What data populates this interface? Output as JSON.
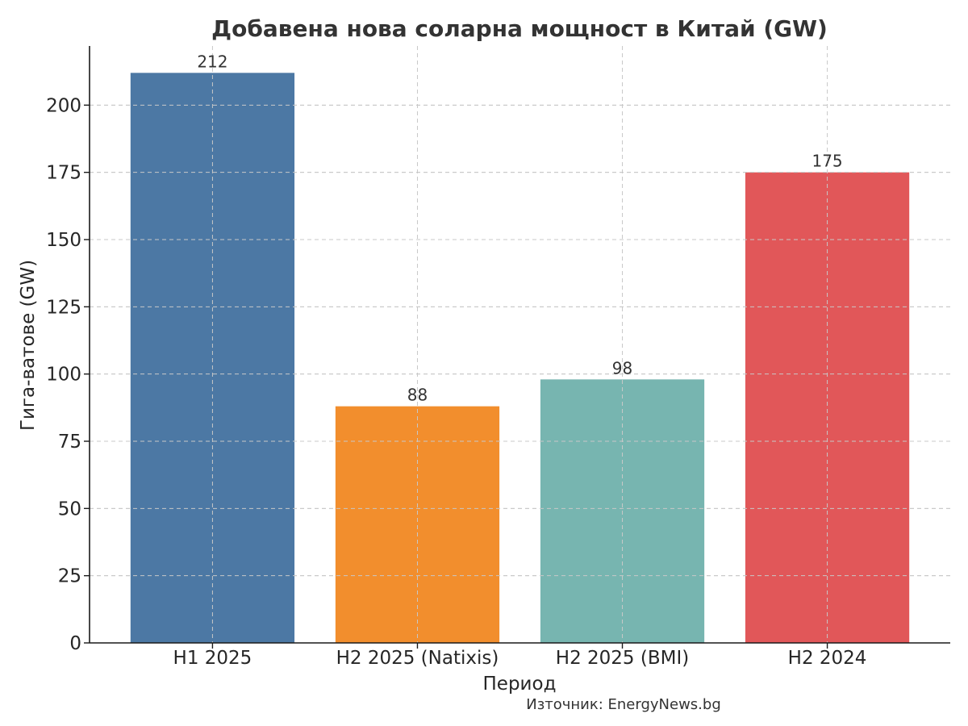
{
  "chart_data": {
    "type": "bar",
    "title": "Добавена нова соларна мощност в Китай (GW)",
    "xlabel": "Период",
    "ylabel": "Гига-ватове (GW)",
    "categories": [
      "H1 2025",
      "H2 2025 (Natixis)",
      "H2 2025 (BMI)",
      "H2 2024"
    ],
    "values": [
      212,
      88,
      98,
      175
    ],
    "data_labels": [
      "212",
      "88",
      "98",
      "175"
    ],
    "colors": [
      "#4c78a4",
      "#f28e2d",
      "#77b5b0",
      "#e15759"
    ],
    "ylim": [
      0,
      222
    ],
    "yticks": [
      0,
      25,
      50,
      75,
      100,
      125,
      150,
      175,
      200
    ],
    "grid": true,
    "source": "Източник: EnergyNews.bg"
  }
}
